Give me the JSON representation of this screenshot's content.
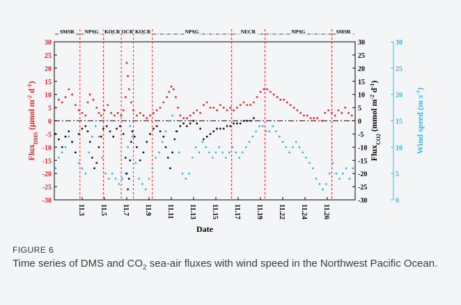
{
  "caption": {
    "label": "FIGURE 6",
    "text_before_sub": "Time series of DMS and CO",
    "text_sub": "2",
    "text_after_sub": " sea-air fluxes with wind speed in the Northwest Pacific Ocean."
  },
  "chart_data": {
    "type": "scatter",
    "xlabel": "Date",
    "x_ticks": [
      "11.3",
      "11.5",
      "11.7",
      "11.9",
      "11.11",
      "11.13",
      "11.15",
      "11.17",
      "11.19",
      "11.22",
      "11.24",
      "11.26"
    ],
    "x_tick_positions": [
      2.5,
      4.5,
      6.5,
      8.5,
      10.5,
      12.5,
      14.5,
      16.5,
      18.5,
      20.5,
      22.5,
      24.5
    ],
    "xlim": [
      0,
      27
    ],
    "ylim_left": [
      -30,
      30
    ],
    "ylim_right": [
      -30,
      30
    ],
    "ylim_wind": [
      0,
      30
    ],
    "y_ticks_left": [
      -30,
      -25,
      -20,
      -15,
      -10,
      -5,
      0,
      5,
      10,
      15,
      20,
      25,
      30
    ],
    "y_ticks_right": [
      -30,
      -25,
      -20,
      -15,
      -10,
      -5,
      0,
      5,
      10,
      15,
      20,
      25,
      30
    ],
    "y_ticks_wind": [
      0,
      5,
      10,
      15,
      20,
      25,
      30
    ],
    "ylabel_left": {
      "main": "Flux",
      "sub": "DMS",
      "unit": " (μmol m",
      "sup1": "-2",
      "mid": " d",
      "sup2": "-1",
      "end": ")"
    },
    "ylabel_right": {
      "main": "Flux",
      "sub": "CO2",
      "unit": " (mmol m",
      "sup1": "-2",
      "mid": " d",
      "sup2": "-1",
      "end": ")"
    },
    "ylabel_wind": {
      "main": "Wind speed (m s",
      "sup": "-1",
      "end": ")"
    },
    "colors": {
      "dms": "#e8202a",
      "co2": "#111111",
      "wind": "#38b6e8",
      "zero_line": "#7a1230",
      "region": "#e8202a",
      "left_axis": "#e8202a",
      "wind_axis": "#38b6e8"
    },
    "regions": [
      {
        "label": "SMSR",
        "start": 0,
        "end": 2.3
      },
      {
        "label": "NPSG",
        "start": 2.3,
        "end": 4.4
      },
      {
        "label": "KOCR",
        "start": 4.4,
        "end": 6.0
      },
      {
        "label": "OCR",
        "start": 6.0,
        "end": 7.1
      },
      {
        "label": "KOCR",
        "start": 7.1,
        "end": 8.8
      },
      {
        "label": "NPSG",
        "start": 8.8,
        "end": 15.9
      },
      {
        "label": "NECR",
        "start": 15.9,
        "end": 18.9
      },
      {
        "label": "NPSG",
        "start": 18.9,
        "end": 24.9
      },
      {
        "label": "SMSR",
        "start": 24.9,
        "end": 27
      }
    ],
    "series": [
      {
        "name": "Flux DMS",
        "key": "dms",
        "x": [
          0.1,
          0.4,
          0.7,
          1.0,
          1.3,
          1.6,
          1.9,
          2.2,
          2.5,
          2.8,
          3.0,
          3.2,
          3.5,
          3.8,
          4.0,
          4.2,
          4.5,
          4.8,
          5.1,
          5.4,
          5.7,
          6.0,
          6.2,
          6.4,
          6.5,
          6.6,
          6.7,
          6.9,
          7.1,
          7.4,
          7.7,
          8.0,
          8.3,
          8.6,
          8.9,
          9.2,
          9.5,
          9.8,
          10.1,
          10.3,
          10.5,
          10.7,
          10.9,
          11.1,
          11.3,
          11.6,
          11.9,
          12.2,
          12.5,
          12.8,
          13.1,
          13.4,
          13.7,
          14.0,
          14.3,
          14.6,
          14.9,
          15.2,
          15.5,
          15.8,
          16.1,
          16.4,
          16.7,
          17.0,
          17.3,
          17.6,
          17.9,
          18.2,
          18.5,
          18.8,
          19.1,
          19.4,
          19.7,
          20.0,
          20.3,
          20.6,
          20.9,
          21.2,
          21.5,
          21.8,
          22.1,
          22.4,
          22.7,
          23.0,
          23.3,
          23.6,
          24.0,
          24.3,
          24.6,
          24.9,
          25.2,
          25.5,
          25.8,
          26.1,
          26.4,
          26.7
        ],
        "y": [
          5,
          8,
          7,
          9,
          12,
          10,
          6,
          4,
          3,
          2,
          7,
          10,
          8,
          5,
          3,
          2,
          4,
          6,
          3,
          2,
          3,
          2,
          4,
          9,
          22,
          17,
          12,
          7,
          4,
          2,
          3,
          2,
          1,
          2,
          3,
          4,
          5,
          7,
          9,
          11,
          13,
          12,
          9,
          5,
          2,
          1,
          1,
          2,
          3,
          4,
          3,
          6,
          7,
          5,
          5,
          4,
          6,
          5,
          4,
          5,
          4,
          5,
          6,
          7,
          6,
          6,
          7,
          9,
          11,
          12,
          12,
          11,
          10,
          9,
          8,
          8,
          7,
          6,
          5,
          4,
          3,
          2,
          2,
          1,
          1,
          1,
          0,
          3,
          4,
          3,
          2,
          4,
          3,
          5,
          3,
          2
        ]
      },
      {
        "name": "Flux CO2",
        "key": "co2",
        "x": [
          0.1,
          0.4,
          0.7,
          1.0,
          1.3,
          1.6,
          1.9,
          2.2,
          2.5,
          2.8,
          3.0,
          3.2,
          3.4,
          3.6,
          3.8,
          4.0,
          4.2,
          4.4,
          4.7,
          5.0,
          5.3,
          5.6,
          5.9,
          6.2,
          6.4,
          6.5,
          6.6,
          6.7,
          6.8,
          6.9,
          7.0,
          7.2,
          7.4,
          7.7,
          8.0,
          8.3,
          8.6,
          8.9,
          9.2,
          9.5,
          9.8,
          10.0,
          10.2,
          10.4,
          10.6,
          10.8,
          11.0,
          11.3,
          11.6,
          11.9,
          12.2,
          12.5,
          12.8,
          13.1,
          13.4,
          13.7,
          14.0,
          14.3,
          14.6,
          14.9,
          15.2,
          15.5,
          15.8,
          16.1,
          16.4,
          16.7,
          17.0,
          17.3,
          17.6,
          17.9
        ],
        "y": [
          -5,
          -7,
          -10,
          -6,
          -4,
          -8,
          -12,
          -5,
          -3,
          -2,
          -4,
          -8,
          -14,
          -18,
          -16,
          -10,
          -6,
          -3,
          -2,
          -4,
          -6,
          -3,
          -2,
          -5,
          -14,
          -20,
          -26,
          -22,
          -15,
          -8,
          -4,
          -6,
          -10,
          -15,
          -12,
          -8,
          -5,
          -3,
          -2,
          -4,
          -6,
          -10,
          -14,
          -18,
          -12,
          -7,
          -4,
          -2,
          -1,
          -2,
          -1,
          0,
          -1,
          -3,
          -7,
          -6,
          -5,
          -4,
          -3,
          -3,
          -3,
          -2,
          -2,
          -1,
          -1,
          -1,
          0,
          0,
          0,
          1
        ]
      },
      {
        "name": "Wind speed",
        "key": "wind",
        "x": [
          0.1,
          0.4,
          0.7,
          1.0,
          1.3,
          1.6,
          1.9,
          2.2,
          2.5,
          2.8,
          3.1,
          3.4,
          3.7,
          4.0,
          4.3,
          4.6,
          4.9,
          5.2,
          5.5,
          5.8,
          6.1,
          6.4,
          6.6,
          6.8,
          7.0,
          7.3,
          7.6,
          7.9,
          8.2,
          8.5,
          8.8,
          9.1,
          9.4,
          9.7,
          10.0,
          10.3,
          10.6,
          10.9,
          11.2,
          11.5,
          11.8,
          12.1,
          12.4,
          12.7,
          13.0,
          13.3,
          13.6,
          13.9,
          14.2,
          14.5,
          14.8,
          15.1,
          15.4,
          15.7,
          16.0,
          16.3,
          16.6,
          16.9,
          17.2,
          17.5,
          17.8,
          18.1,
          18.4,
          18.7,
          19.0,
          19.3,
          19.6,
          19.9,
          20.2,
          20.5,
          20.8,
          21.1,
          21.4,
          21.7,
          22.0,
          22.3,
          22.6,
          22.9,
          23.2,
          23.5,
          23.8,
          24.1,
          24.4,
          24.7,
          25.0,
          25.3,
          25.6,
          25.9,
          26.2,
          26.5,
          26.8
        ],
        "y": [
          6,
          8,
          9,
          10,
          12,
          11,
          9,
          7,
          6,
          5,
          9,
          12,
          14,
          12,
          8,
          5,
          4,
          5,
          4,
          3,
          4,
          5,
          10,
          14,
          12,
          7,
          4,
          3,
          2,
          4,
          6,
          8,
          9,
          11,
          13,
          15,
          16,
          13,
          9,
          5,
          4,
          5,
          8,
          10,
          9,
          11,
          10,
          9,
          8,
          9,
          10,
          9,
          8,
          9,
          10,
          9,
          8,
          9,
          10,
          11,
          12,
          13,
          14,
          14,
          13,
          13,
          14,
          13,
          12,
          11,
          10,
          9,
          10,
          11,
          10,
          9,
          8,
          7,
          6,
          4,
          3,
          2,
          3,
          5,
          7,
          5,
          4,
          5,
          6,
          4,
          6
        ]
      }
    ]
  }
}
